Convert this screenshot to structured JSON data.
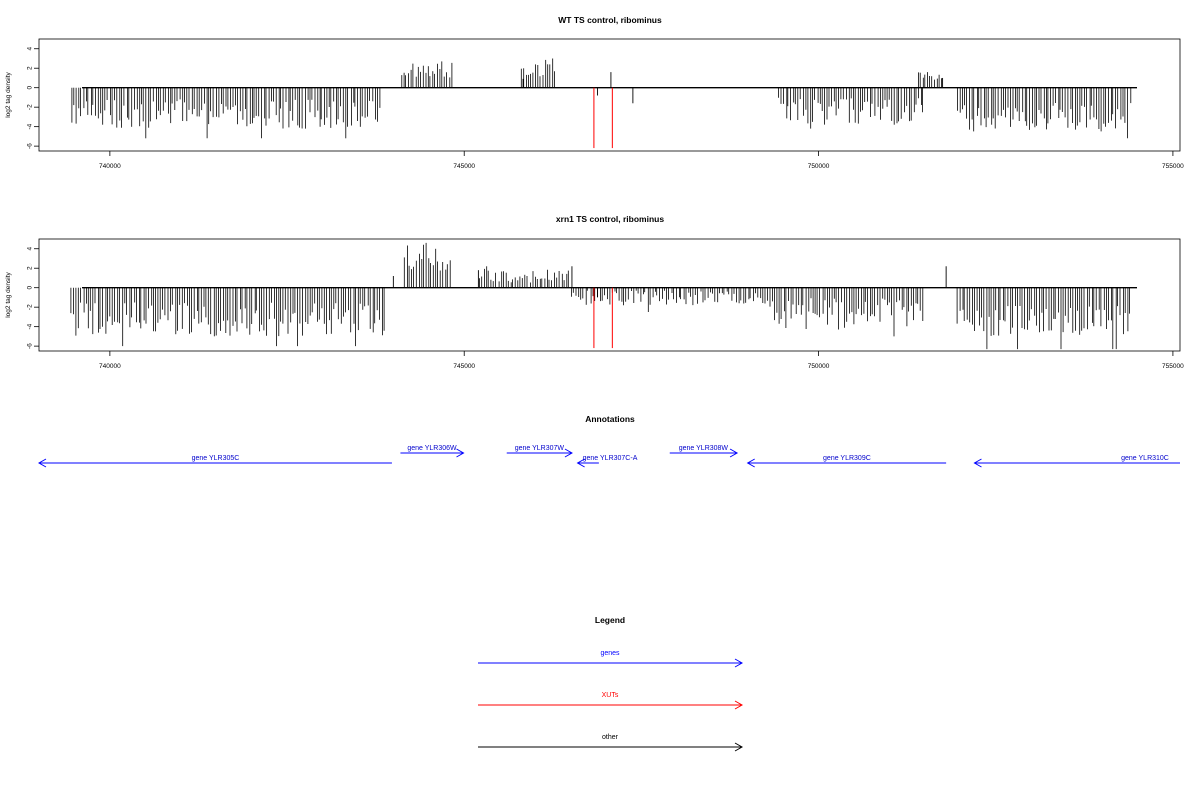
{
  "chart_data": [
    {
      "type": "bar",
      "title": "WT TS control, ribominus",
      "ylabel": "log2 tag density",
      "xlim": [
        739000,
        755100
      ],
      "ylim": [
        -6.5,
        5
      ],
      "xticks": [
        740000,
        745000,
        750000,
        755000
      ],
      "yticks": [
        -6,
        -4,
        -2,
        0,
        2,
        4
      ],
      "xut_lines": [
        746830,
        747090
      ],
      "xut_depth": -6.2,
      "segments": [
        {
          "x0": 739450,
          "x1": 743830,
          "ymin": -4.2,
          "ymax": -1.2,
          "extreme": -5.2
        },
        {
          "x0": 744100,
          "x1": 744850,
          "ymin": 1.0,
          "ymax": 2.7,
          "extreme": 2.7
        },
        {
          "x0": 745800,
          "x1": 746300,
          "ymin": 1.0,
          "ymax": 3.0,
          "extreme": 3.0
        },
        {
          "x0": 749430,
          "x1": 751500,
          "ymin": -3.8,
          "ymax": -1.0,
          "extreme": -4.2
        },
        {
          "x0": 751400,
          "x1": 751760,
          "ymin": 0.8,
          "ymax": 1.6,
          "extreme": 1.6
        },
        {
          "x0": 751950,
          "x1": 754420,
          "ymin": -4.5,
          "ymax": -1.5,
          "extreme": -5.2
        }
      ],
      "sparse": [
        {
          "x": 745830,
          "y": 0.9
        },
        {
          "x": 746880,
          "y": -0.8
        },
        {
          "x": 747070,
          "y": 1.6
        },
        {
          "x": 747380,
          "y": -1.6
        },
        {
          "x": 751750,
          "y": 1.0
        }
      ]
    },
    {
      "type": "bar",
      "title": "xrn1 TS control, ribominus",
      "ylabel": "log2 tag density",
      "xlim": [
        739000,
        755100
      ],
      "ylim": [
        -6.5,
        5
      ],
      "xticks": [
        740000,
        745000,
        750000,
        755000
      ],
      "yticks": [
        -6,
        -4,
        -2,
        0,
        2,
        4
      ],
      "xut_lines": [
        746830,
        747090
      ],
      "xut_depth": -6.2,
      "segments": [
        {
          "x0": 739450,
          "x1": 743900,
          "ymin": -5.0,
          "ymax": -1.5,
          "extreme": -6.0
        },
        {
          "x0": 744150,
          "x1": 744820,
          "ymin": 1.5,
          "ymax": 4.5,
          "extreme": 4.6
        },
        {
          "x0": 745200,
          "x1": 746500,
          "ymin": 0.5,
          "ymax": 2.0,
          "extreme": 2.2
        },
        {
          "x0": 746500,
          "x1": 749300,
          "ymin": -1.8,
          "ymax": -0.3,
          "extreme": -2.5
        },
        {
          "x0": 749300,
          "x1": 751500,
          "ymin": -4.3,
          "ymax": -1.0,
          "extreme": -5.0
        },
        {
          "x0": 751950,
          "x1": 754420,
          "ymin": -5.0,
          "ymax": -1.8,
          "extreme": -6.3
        }
      ],
      "sparse": [
        {
          "x": 745200,
          "y": 1.8
        },
        {
          "x": 746520,
          "y": 2.2
        },
        {
          "x": 746880,
          "y": -1.0
        },
        {
          "x": 751800,
          "y": 2.2
        },
        {
          "x": 744000,
          "y": 1.2
        }
      ]
    }
  ],
  "annotations": {
    "title": "Annotations",
    "genes": [
      {
        "label": "gene YLR305C",
        "x0": 739000,
        "x1": 743980,
        "strand": "-"
      },
      {
        "label": "gene YLR306W",
        "x0": 744100,
        "x1": 744990,
        "strand": "+"
      },
      {
        "label": "gene YLR307W",
        "x0": 745600,
        "x1": 746520,
        "strand": "+"
      },
      {
        "label": "gene YLR307C-A",
        "x0": 746600,
        "x1": 746900,
        "strand": "-"
      },
      {
        "label": "gene YLR308W",
        "x0": 747900,
        "x1": 748850,
        "strand": "+"
      },
      {
        "label": "gene YLR309C",
        "x0": 749000,
        "x1": 751800,
        "strand": "-"
      },
      {
        "label": "gene YLR310C",
        "x0": 752200,
        "x1": 755100,
        "strand": "-"
      }
    ]
  },
  "legend": {
    "title": "Legend",
    "items": [
      {
        "label": "genes",
        "color": "#0000ff"
      },
      {
        "label": "XUTs",
        "color": "#ff0000"
      },
      {
        "label": "other",
        "color": "#000000"
      }
    ]
  }
}
